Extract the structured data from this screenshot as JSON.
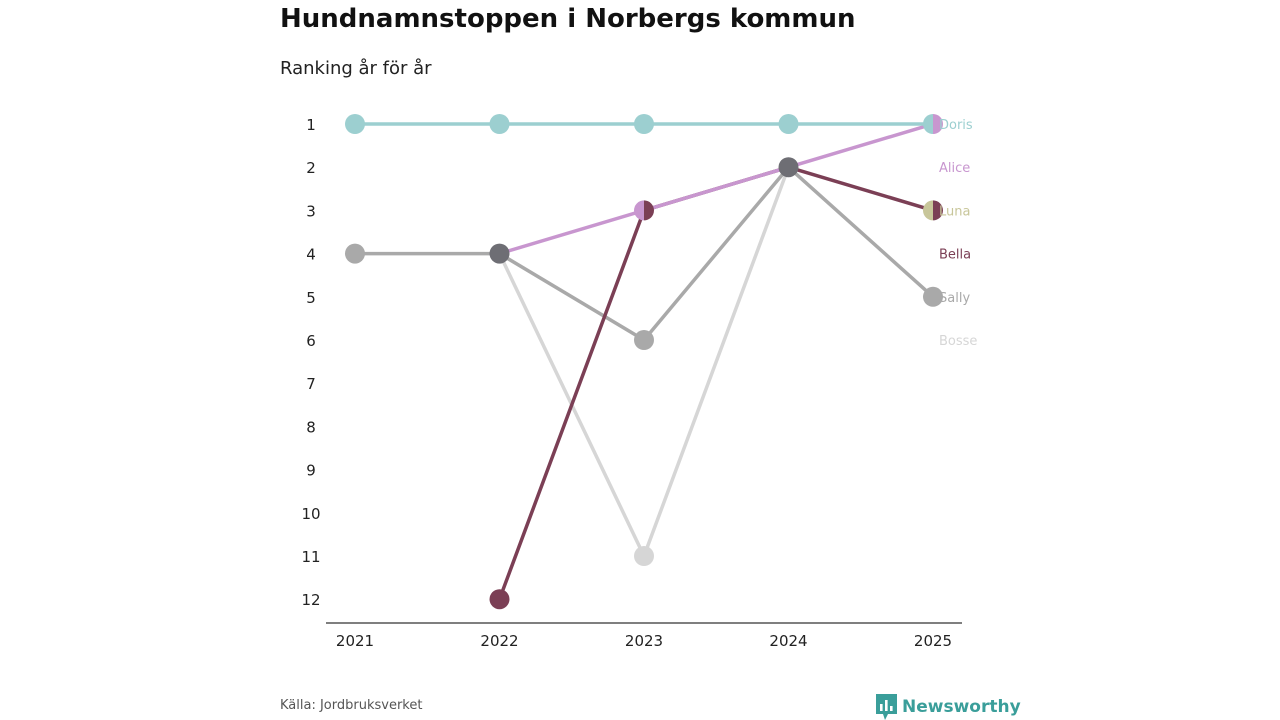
{
  "title": "Hundnamnstoppen i Norbergs kommun",
  "subtitle": "Ranking år för år",
  "source": "Källa: Jordbruksverket",
  "brand": {
    "name": "Newsworthy",
    "icon": "bar-chart-logo-icon",
    "color": "#3a9e9a"
  },
  "chart_data": {
    "type": "line",
    "chart_kind": "bump",
    "title": "Hundnamnstoppen i Norbergs kommun",
    "subtitle": "Ranking år för år",
    "xlabel": "",
    "ylabel": "",
    "x": [
      "2021",
      "2022",
      "2023",
      "2024",
      "2025"
    ],
    "y_ticks": [
      1,
      2,
      3,
      4,
      5,
      6,
      7,
      8,
      9,
      10,
      11,
      12
    ],
    "ylim": [
      1,
      12
    ],
    "y_inverted": true,
    "grid": false,
    "series": [
      {
        "name": "Bosse",
        "color": "#d6d6d6",
        "values": [
          null,
          4,
          11,
          2,
          null
        ],
        "final_label_rank": 6
      },
      {
        "name": "Sally",
        "color": "#a9a9a9",
        "values": [
          4,
          4,
          6,
          2,
          5
        ],
        "final_label_rank": 5
      },
      {
        "name": "Bella",
        "color": "#7b3f55",
        "values": [
          null,
          12,
          3,
          2,
          3
        ],
        "final_label_rank": 4
      },
      {
        "name": "Luna",
        "color": "#c8c69a",
        "values": [
          null,
          null,
          null,
          null,
          3
        ],
        "final_label_rank": 3
      },
      {
        "name": "Alice",
        "color": "#c896cf",
        "values": [
          null,
          4,
          3,
          2,
          1
        ],
        "final_label_rank": 2
      },
      {
        "name": "Doris",
        "color": "#9ccfd0",
        "values": [
          1,
          1,
          1,
          1,
          1
        ],
        "final_label_rank": 1
      }
    ],
    "shared_marker_color": "#6e6e74"
  }
}
